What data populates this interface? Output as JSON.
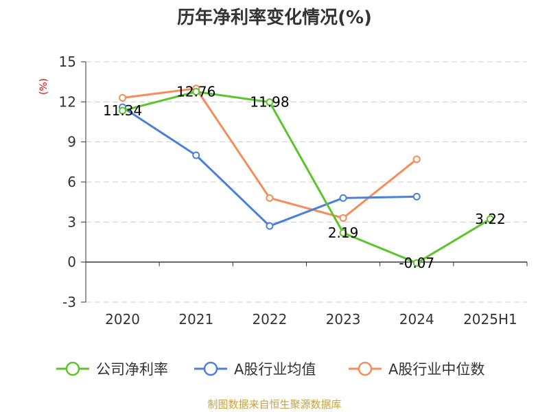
{
  "chart_data": {
    "type": "line",
    "title": "历年净利率变化情况(%)",
    "ylabel": "(%)",
    "categories": [
      "2020",
      "2021",
      "2022",
      "2023",
      "2024",
      "2025H1"
    ],
    "ylim": [
      -3,
      15
    ],
    "yticks": [
      "15",
      "12",
      "9",
      "6",
      "3",
      "0",
      "-3"
    ],
    "grid": true,
    "legend_position": "bottom",
    "series": [
      {
        "name": "公司净利率",
        "color": "#5cc42b",
        "values": [
          11.34,
          12.76,
          11.98,
          2.19,
          -0.07,
          3.22
        ],
        "labels": [
          "11.34",
          "12.76",
          "11.98",
          "2.19",
          "-0.07",
          "3.22"
        ]
      },
      {
        "name": "A股行业均值",
        "color": "#4a7fdc",
        "values": [
          11.6,
          8.0,
          2.7,
          4.8,
          4.9,
          null
        ]
      },
      {
        "name": "A股行业中位数",
        "color": "#f58c5a",
        "values": [
          12.3,
          13.0,
          4.8,
          3.3,
          7.7,
          null
        ]
      }
    ]
  },
  "source": "制图数据来自恒生聚源数据库"
}
